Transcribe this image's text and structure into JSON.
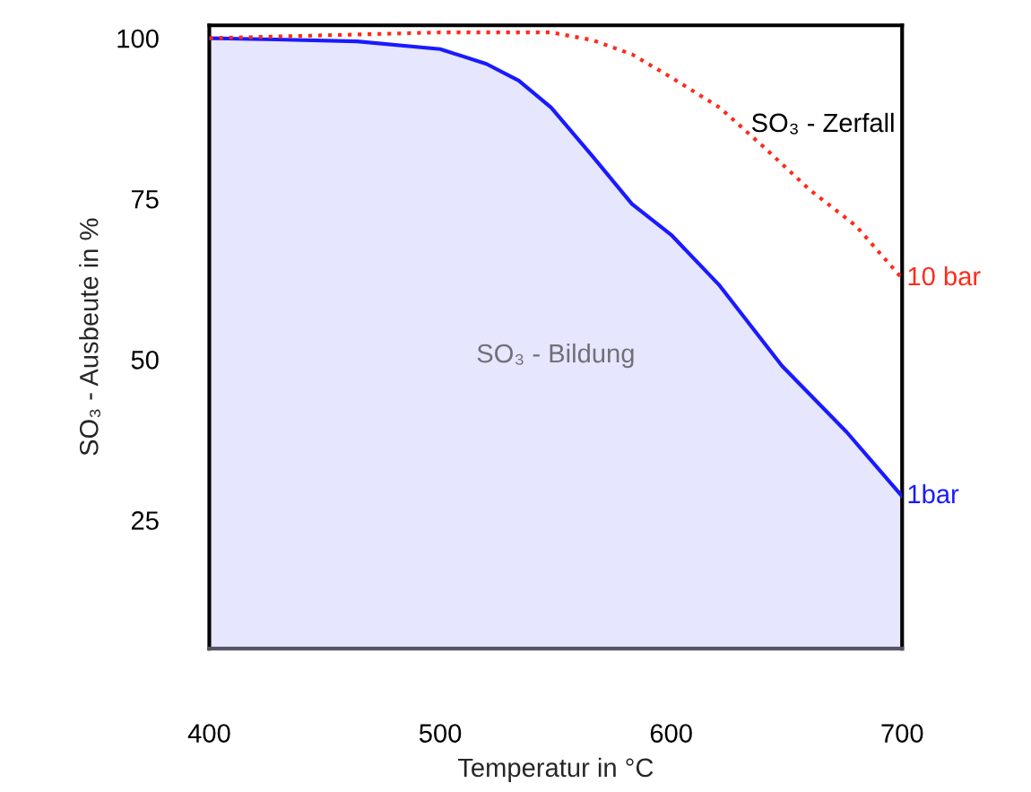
{
  "chart_data": {
    "type": "line",
    "xlabel": "Temperatur in °C",
    "ylabel": "SO₃ - Ausbeute in %",
    "xlim": [
      400,
      700
    ],
    "xticks": [
      400,
      500,
      600,
      700
    ],
    "ylim": [
      5,
      102
    ],
    "yticks": [
      25,
      50,
      75,
      100
    ],
    "grid": false,
    "legend": false,
    "series": [
      {
        "name": "1bar",
        "type": "area",
        "color": "#1a1aff",
        "line_style": "solid",
        "x": [
          400,
          429,
          464,
          500,
          520,
          534,
          548,
          566,
          583,
          600,
          621,
          648,
          676,
          700
        ],
        "values": [
          100,
          99.8,
          99.5,
          98.3,
          96,
          93.4,
          89.2,
          81.6,
          74.2,
          69.4,
          61.5,
          49,
          38.7,
          28.7
        ]
      },
      {
        "name": "10 bar",
        "color": "#ff2a1a",
        "line_style": "dotted",
        "x": [
          400,
          500,
          548,
          566,
          583,
          600,
          621,
          640,
          660,
          680,
          700
        ],
        "values": [
          100,
          100.9,
          100.9,
          99.7,
          97.5,
          93.9,
          89.2,
          83.1,
          76.4,
          70.8,
          62.6
        ]
      }
    ],
    "annotations": [
      "SO₃ - Zerfall",
      "SO₃ - Bildung"
    ]
  }
}
